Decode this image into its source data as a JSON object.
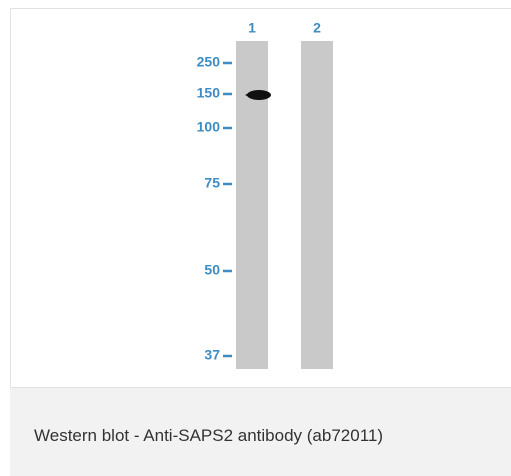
{
  "blot": {
    "lanes": [
      "1",
      "2"
    ],
    "markers": [
      "250",
      "150",
      "100",
      "75",
      "50",
      "37"
    ]
  },
  "caption": "Western blot - Anti-SAPS2 antibody (ab72011)"
}
